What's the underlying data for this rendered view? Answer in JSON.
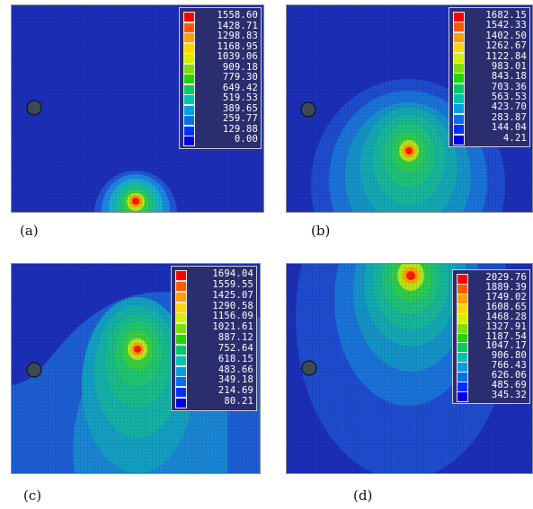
{
  "panels": [
    {
      "id": "a",
      "caption": "(a)",
      "legend": [
        "1558.60",
        "1428.71",
        "1298.83",
        "1168.95",
        "1039.06",
        "909.18",
        "779.30",
        "649.42",
        "519.53",
        "389.65",
        "259.77",
        "129.88",
        "0.00"
      ]
    },
    {
      "id": "b",
      "caption": "(b)",
      "legend": [
        "1682.15",
        "1542.33",
        "1402.50",
        "1262.67",
        "1122.84",
        "983.01",
        "843.18",
        "703.36",
        "563.53",
        "423.70",
        "283.87",
        "144.04",
        "4.21"
      ]
    },
    {
      "id": "c",
      "caption": "(c)",
      "legend": [
        "1694.04",
        "1559.55",
        "1425.07",
        "1290.58",
        "1156.09",
        "1021.61",
        "887.12",
        "752.64",
        "618.15",
        "483.66",
        "349.18",
        "214.69",
        "80.21"
      ]
    },
    {
      "id": "d",
      "caption": "(d)",
      "legend": [
        "2029.76",
        "1889.39",
        "1749.02",
        "1608.65",
        "1468.28",
        "1327.91",
        "1187.54",
        "1047.17",
        "906.80",
        "766.43",
        "626.06",
        "485.69",
        "345.32"
      ]
    }
  ],
  "legend_colors": [
    "#ff0000",
    "#ff5a00",
    "#ff9f00",
    "#ffd700",
    "#d6f000",
    "#7de000",
    "#22d400",
    "#00cc66",
    "#00c4b0",
    "#00a0e0",
    "#0070f0",
    "#0030ff",
    "#0000e0"
  ],
  "colors": {
    "background": "#1c2fb8",
    "tooth": "#3d4a55"
  }
}
